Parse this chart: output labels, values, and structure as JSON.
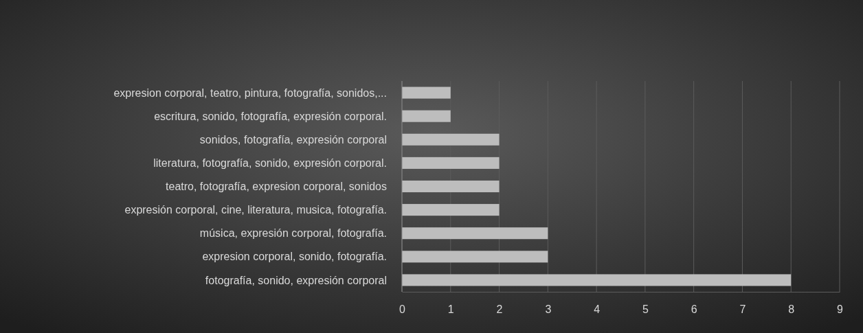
{
  "chart_data": {
    "type": "bar",
    "orientation": "horizontal",
    "categories": [
      "expresion corporal, teatro, pintura, fotografía, sonidos,...",
      "escritura, sonido, fotografía, expresión corporal.",
      "sonidos, fotografía, expresión corporal",
      "literatura, fotografía, sonido, expresión corporal.",
      "teatro, fotografía, expresion corporal, sonidos",
      "expresión corporal, cine, literatura, musica, fotografía.",
      "música, expresión corporal, fotografía.",
      "expresion corporal, sonido, fotografía.",
      "fotografía, sonido, expresión corporal"
    ],
    "values": [
      1,
      1,
      2,
      2,
      2,
      2,
      3,
      3,
      8
    ],
    "color": "#bdbdbd",
    "xlim": [
      0,
      9
    ],
    "xticks": [
      0,
      1,
      2,
      3,
      4,
      5,
      6,
      7,
      8,
      9
    ],
    "grid": "x"
  }
}
